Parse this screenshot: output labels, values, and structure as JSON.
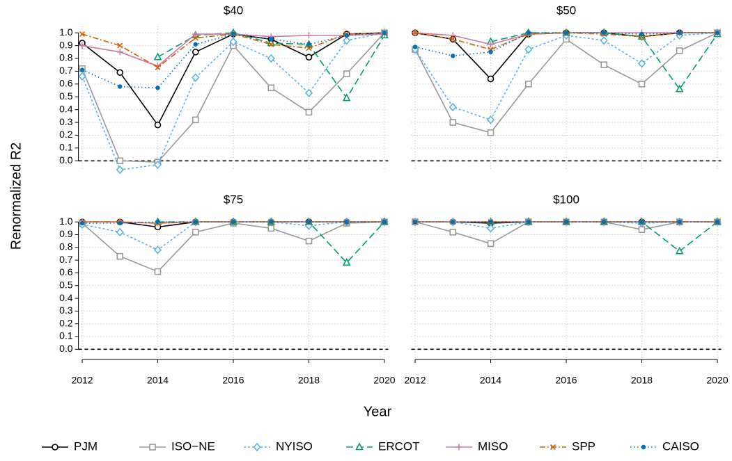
{
  "chart_data": [
    {
      "type": "line",
      "title": "$40",
      "x": [
        2012,
        2013,
        2014,
        2015,
        2016,
        2017,
        2018,
        2019,
        2020
      ],
      "xlim": [
        2011.9,
        2020.1
      ],
      "xticks": [
        2012,
        2014,
        2016,
        2018,
        2020
      ],
      "ylim": [
        -0.08,
        1.05
      ],
      "yticks": [
        {
          "value": 0,
          "label": "0.0"
        },
        0.1,
        0.2,
        0.3,
        0.4,
        0.5,
        0.6,
        0.7,
        0.8,
        0.9,
        {
          "value": 1,
          "label": "1.0"
        }
      ],
      "grid": true,
      "reference_line": 0,
      "series": [
        {
          "name": "PJM",
          "color": "#000000",
          "marker": "circle",
          "line_style": "solid",
          "values": [
            0.92,
            0.69,
            0.28,
            0.85,
            0.99,
            0.95,
            0.81,
            0.99,
            1.0
          ]
        },
        {
          "name": "ISO−NE",
          "color": "#999999",
          "marker": "square",
          "line_style": "solid",
          "values": [
            0.72,
            0.0,
            -0.01,
            0.32,
            0.9,
            0.57,
            0.38,
            0.68,
            1.0
          ]
        },
        {
          "name": "NYISO",
          "color": "#56B4E9",
          "marker": "diamond",
          "line_style": "dotted",
          "values": [
            0.66,
            -0.07,
            -0.03,
            0.65,
            0.93,
            0.8,
            0.53,
            0.94,
            1.0
          ]
        },
        {
          "name": "ERCOT",
          "color": "#009E73",
          "marker": "triangle",
          "line_style": "longdash",
          "values": [
            null,
            null,
            0.81,
            0.98,
            1.0,
            0.92,
            0.91,
            0.49,
            0.98
          ]
        },
        {
          "name": "MISO",
          "color": "#CC79A7",
          "marker": "plus",
          "line_style": "solid",
          "values": [
            0.9,
            0.85,
            0.74,
            0.99,
            0.99,
            0.97,
            0.98,
            0.98,
            0.99
          ]
        },
        {
          "name": "SPP",
          "color": "#D55E00",
          "marker": "cross",
          "line_style": "dashdot",
          "values": [
            0.99,
            0.9,
            0.73,
            0.96,
            0.99,
            0.91,
            0.88,
            0.99,
            1.0
          ]
        },
        {
          "name": "CAISO",
          "color": "#0072B2",
          "marker": "dot",
          "line_style": "dot",
          "values": [
            0.71,
            0.58,
            0.57,
            0.91,
            0.99,
            0.95,
            0.91,
            0.98,
            1.0
          ]
        }
      ]
    },
    {
      "type": "line",
      "title": "$50",
      "x": [
        2012,
        2013,
        2014,
        2015,
        2016,
        2017,
        2018,
        2019,
        2020
      ],
      "xlim": [
        2011.9,
        2020.1
      ],
      "xticks": [
        2012,
        2014,
        2016,
        2018,
        2020
      ],
      "ylim": [
        -0.08,
        1.05
      ],
      "yticks": [
        {
          "value": 0,
          "label": "0.0"
        },
        0.1,
        0.2,
        0.3,
        0.4,
        0.5,
        0.6,
        0.7,
        0.8,
        0.9,
        {
          "value": 1,
          "label": "1.0"
        }
      ],
      "grid": true,
      "reference_line": 0,
      "series": [
        {
          "name": "PJM",
          "color": "#000000",
          "marker": "circle",
          "line_style": "solid",
          "values": [
            1.0,
            0.95,
            0.64,
            0.99,
            1.0,
            1.0,
            0.97,
            1.0,
            1.0
          ]
        },
        {
          "name": "ISO−NE",
          "color": "#999999",
          "marker": "square",
          "line_style": "solid",
          "values": [
            0.87,
            0.3,
            0.22,
            0.6,
            0.95,
            0.75,
            0.6,
            0.86,
            1.0
          ]
        },
        {
          "name": "NYISO",
          "color": "#56B4E9",
          "marker": "diamond",
          "line_style": "dotted",
          "values": [
            0.87,
            0.42,
            0.32,
            0.87,
            0.98,
            0.94,
            0.76,
            0.98,
            1.0
          ]
        },
        {
          "name": "ERCOT",
          "color": "#009E73",
          "marker": "triangle",
          "line_style": "longdash",
          "values": [
            null,
            null,
            0.93,
            1.0,
            1.0,
            1.0,
            0.97,
            0.56,
            0.99
          ]
        },
        {
          "name": "MISO",
          "color": "#CC79A7",
          "marker": "plus",
          "line_style": "solid",
          "values": [
            1.0,
            0.98,
            0.91,
            0.99,
            1.0,
            1.0,
            1.0,
            1.0,
            1.0
          ]
        },
        {
          "name": "SPP",
          "color": "#D55E00",
          "marker": "cross",
          "line_style": "dashdot",
          "values": [
            1.0,
            0.95,
            0.87,
            0.99,
            1.0,
            0.99,
            0.97,
            1.0,
            1.0
          ]
        },
        {
          "name": "CAISO",
          "color": "#0072B2",
          "marker": "dot",
          "line_style": "dot",
          "values": [
            0.89,
            0.82,
            0.85,
            1.0,
            1.0,
            1.0,
            0.99,
            1.0,
            1.0
          ]
        }
      ]
    },
    {
      "type": "line",
      "title": "$75",
      "x": [
        2012,
        2013,
        2014,
        2015,
        2016,
        2017,
        2018,
        2019,
        2020
      ],
      "xlim": [
        2011.9,
        2020.1
      ],
      "xticks": [
        2012,
        2014,
        2016,
        2018,
        2020
      ],
      "ylim": [
        -0.08,
        1.05
      ],
      "yticks": [
        {
          "value": 0,
          "label": "0.0"
        },
        0.1,
        0.2,
        0.3,
        0.4,
        0.5,
        0.6,
        0.7,
        0.8,
        0.9,
        {
          "value": 1,
          "label": "1.0"
        }
      ],
      "grid": true,
      "reference_line": 0,
      "series": [
        {
          "name": "PJM",
          "color": "#000000",
          "marker": "circle",
          "line_style": "solid",
          "values": [
            1.0,
            1.0,
            0.96,
            1.0,
            1.0,
            1.0,
            1.0,
            1.0,
            1.0
          ]
        },
        {
          "name": "ISO−NE",
          "color": "#999999",
          "marker": "square",
          "line_style": "solid",
          "values": [
            0.99,
            0.73,
            0.61,
            0.92,
            0.99,
            0.95,
            0.85,
            0.99,
            1.0
          ]
        },
        {
          "name": "NYISO",
          "color": "#56B4E9",
          "marker": "diamond",
          "line_style": "dotted",
          "values": [
            0.98,
            0.92,
            0.78,
            1.0,
            1.0,
            1.0,
            0.97,
            1.0,
            1.0
          ]
        },
        {
          "name": "ERCOT",
          "color": "#009E73",
          "marker": "triangle",
          "line_style": "longdash",
          "values": [
            null,
            null,
            1.0,
            1.0,
            1.0,
            1.0,
            1.0,
            0.68,
            1.0
          ]
        },
        {
          "name": "MISO",
          "color": "#CC79A7",
          "marker": "plus",
          "line_style": "solid",
          "values": [
            1.0,
            1.0,
            0.99,
            1.0,
            1.0,
            1.0,
            1.0,
            1.0,
            1.0
          ]
        },
        {
          "name": "SPP",
          "color": "#D55E00",
          "marker": "cross",
          "line_style": "dashdot",
          "values": [
            1.0,
            1.0,
            0.99,
            1.0,
            1.0,
            1.0,
            1.0,
            1.0,
            1.0
          ]
        },
        {
          "name": "CAISO",
          "color": "#0072B2",
          "marker": "dot",
          "line_style": "dot",
          "values": [
            0.99,
            0.99,
            1.0,
            1.0,
            1.0,
            1.0,
            1.0,
            1.0,
            1.0
          ]
        }
      ]
    },
    {
      "type": "line",
      "title": "$100",
      "x": [
        2012,
        2013,
        2014,
        2015,
        2016,
        2017,
        2018,
        2019,
        2020
      ],
      "xlim": [
        2011.9,
        2020.1
      ],
      "xticks": [
        2012,
        2014,
        2016,
        2018,
        2020
      ],
      "ylim": [
        -0.08,
        1.05
      ],
      "yticks": [
        {
          "value": 0,
          "label": "0.0"
        },
        0.1,
        0.2,
        0.3,
        0.4,
        0.5,
        0.6,
        0.7,
        0.8,
        0.9,
        {
          "value": 1,
          "label": "1.0"
        }
      ],
      "grid": true,
      "reference_line": 0,
      "series": [
        {
          "name": "PJM",
          "color": "#000000",
          "marker": "circle",
          "line_style": "solid",
          "values": [
            1.0,
            1.0,
            0.99,
            1.0,
            1.0,
            1.0,
            1.0,
            1.0,
            1.0
          ]
        },
        {
          "name": "ISO−NE",
          "color": "#999999",
          "marker": "square",
          "line_style": "solid",
          "values": [
            1.0,
            0.92,
            0.83,
            1.0,
            1.0,
            1.0,
            0.94,
            1.0,
            1.0
          ]
        },
        {
          "name": "NYISO",
          "color": "#56B4E9",
          "marker": "diamond",
          "line_style": "dotted",
          "values": [
            1.0,
            1.0,
            0.95,
            1.0,
            1.0,
            1.0,
            0.99,
            1.0,
            1.0
          ]
        },
        {
          "name": "ERCOT",
          "color": "#009E73",
          "marker": "triangle",
          "line_style": "longdash",
          "values": [
            null,
            null,
            1.0,
            1.0,
            1.0,
            1.0,
            1.0,
            0.77,
            1.0
          ]
        },
        {
          "name": "MISO",
          "color": "#CC79A7",
          "marker": "plus",
          "line_style": "solid",
          "values": [
            1.0,
            1.0,
            1.0,
            1.0,
            1.0,
            1.0,
            1.0,
            1.0,
            1.0
          ]
        },
        {
          "name": "SPP",
          "color": "#D55E00",
          "marker": "cross",
          "line_style": "dashdot",
          "values": [
            1.0,
            1.0,
            1.0,
            1.0,
            1.0,
            1.0,
            1.0,
            1.0,
            1.0
          ]
        },
        {
          "name": "CAISO",
          "color": "#0072B2",
          "marker": "dot",
          "line_style": "dot",
          "values": [
            1.0,
            1.0,
            1.0,
            1.0,
            1.0,
            1.0,
            1.0,
            1.0,
            1.0
          ]
        }
      ]
    }
  ],
  "y_label": "Renormalized R2",
  "x_label": "Year"
}
